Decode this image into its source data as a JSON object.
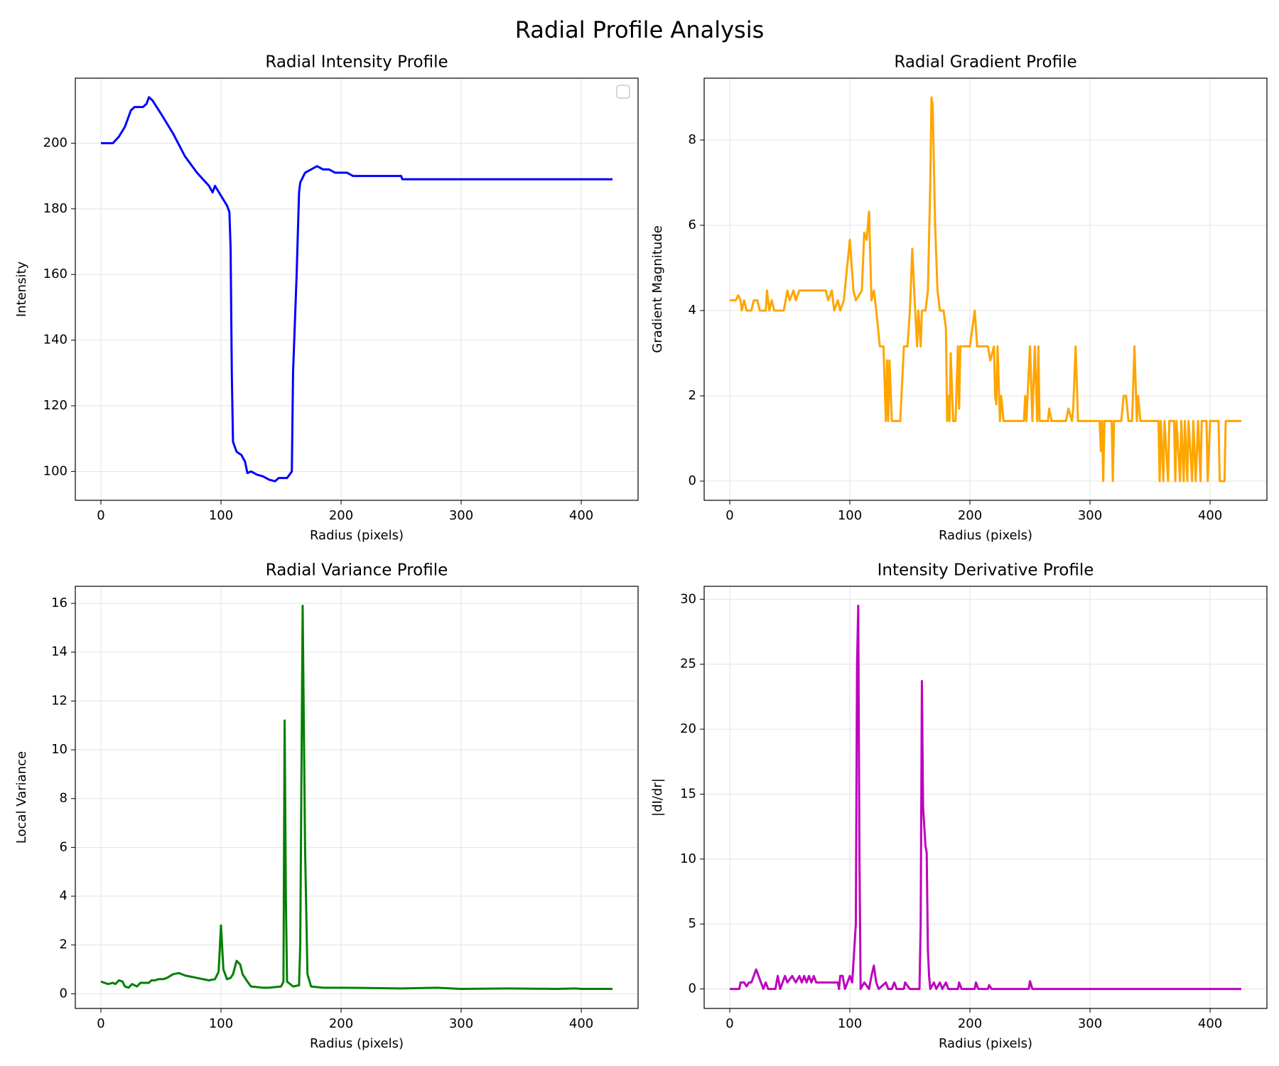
{
  "title": "Radial Profile Analysis",
  "chart_data": [
    {
      "type": "line",
      "title": "Radial Intensity Profile",
      "x_label": "Radius (pixels)",
      "y_label": "Intensity",
      "color": "#0000ff",
      "grid": true,
      "legend": "upper right",
      "xlim": [
        -21.3,
        447.3
      ],
      "xticks": [
        0,
        100,
        200,
        300,
        400
      ],
      "ylim": [
        91.2,
        219.8
      ],
      "yticks": [
        100,
        120,
        140,
        160,
        180,
        200
      ],
      "x": [
        0,
        10,
        15,
        20,
        25,
        28,
        35,
        38,
        40,
        43,
        50,
        60,
        70,
        80,
        90,
        93,
        95,
        100,
        105,
        107,
        108,
        109,
        110,
        113,
        117,
        120,
        122,
        125,
        130,
        135,
        140,
        145,
        148,
        155,
        159,
        160,
        163,
        165,
        166,
        170,
        175,
        180,
        185,
        190,
        195,
        205,
        210,
        250,
        251,
        426
      ],
      "values": [
        200,
        200,
        202,
        205,
        210,
        211,
        211,
        212,
        214,
        213,
        209,
        203,
        196,
        191,
        187,
        185,
        187,
        184,
        181,
        179,
        168,
        130,
        109,
        106,
        105,
        103,
        99.5,
        100,
        99,
        98.5,
        97.5,
        97,
        98,
        98,
        100,
        130,
        160,
        185,
        188,
        191,
        192,
        193,
        192,
        192,
        191,
        191,
        190,
        190,
        189,
        189
      ]
    },
    {
      "type": "line",
      "title": "Radial Gradient Profile",
      "x_label": "Radius (pixels)",
      "y_label": "Gradient Magnitude",
      "color": "#ffa500",
      "grid": true,
      "xlim": [
        -21.3,
        447.3
      ],
      "xticks": [
        0,
        100,
        200,
        300,
        400
      ],
      "ylim": [
        -0.45,
        9.45
      ],
      "yticks": [
        0,
        2,
        4,
        6,
        8
      ],
      "x": [
        0,
        5,
        7,
        9,
        10,
        12,
        14,
        18,
        20,
        23,
        25,
        30,
        31,
        33,
        35,
        37,
        45,
        48,
        50,
        53,
        55,
        58,
        80,
        82,
        85,
        87,
        90,
        92,
        95,
        100,
        103,
        105,
        110,
        112,
        114,
        116,
        118,
        120,
        122,
        125,
        128,
        130,
        131,
        132,
        133,
        135,
        142,
        145,
        148,
        150,
        152,
        154,
        156,
        157,
        159,
        160,
        163,
        165,
        167,
        168,
        169,
        171,
        173,
        175,
        178,
        180,
        181,
        182,
        183,
        184,
        186,
        188,
        190,
        191,
        192,
        200,
        204,
        206,
        215,
        217,
        220,
        221,
        222,
        223,
        225,
        226,
        228,
        245,
        246,
        247,
        250,
        252,
        254,
        256,
        257,
        258,
        265,
        266,
        268,
        280,
        282,
        285,
        286,
        288,
        290,
        308,
        309,
        310,
        311,
        312,
        318,
        319,
        320,
        326,
        328,
        330,
        332,
        335,
        337,
        339,
        340,
        342,
        357,
        358,
        359,
        361,
        362,
        365,
        366,
        370,
        371,
        372,
        375,
        376,
        378,
        379,
        381,
        382,
        385,
        386,
        388,
        390,
        392,
        393,
        397,
        398,
        400,
        407,
        408,
        412,
        413,
        426
      ],
      "values": [
        4.24,
        4.24,
        4.36,
        4.24,
        4.0,
        4.24,
        4.0,
        4.0,
        4.24,
        4.24,
        4.0,
        4.0,
        4.47,
        4.0,
        4.24,
        4.0,
        4.0,
        4.47,
        4.24,
        4.47,
        4.24,
        4.47,
        4.47,
        4.24,
        4.47,
        4.0,
        4.24,
        4.0,
        4.24,
        5.66,
        4.47,
        4.24,
        4.47,
        5.83,
        5.66,
        6.32,
        4.24,
        4.47,
        4.0,
        3.16,
        3.16,
        1.41,
        2.83,
        1.41,
        2.83,
        1.41,
        1.41,
        3.16,
        3.16,
        4.0,
        5.45,
        4.24,
        3.16,
        4.0,
        3.16,
        4.0,
        4.0,
        4.47,
        7.0,
        9.0,
        8.8,
        6.0,
        4.47,
        4.0,
        4.0,
        3.6,
        1.41,
        2.0,
        1.41,
        3.0,
        1.41,
        1.41,
        3.16,
        1.7,
        3.16,
        3.16,
        4.0,
        3.16,
        3.16,
        2.83,
        3.16,
        2.0,
        1.8,
        3.16,
        1.41,
        2.0,
        1.41,
        1.41,
        2.0,
        1.41,
        3.16,
        1.41,
        3.16,
        1.41,
        3.16,
        1.41,
        1.41,
        1.7,
        1.41,
        1.41,
        1.7,
        1.41,
        1.7,
        3.16,
        1.41,
        1.41,
        0.7,
        1.41,
        0,
        1.41,
        1.41,
        0,
        1.41,
        1.41,
        2.0,
        2.0,
        1.41,
        1.41,
        3.16,
        1.41,
        2.0,
        1.41,
        1.41,
        0,
        1.41,
        0,
        1.41,
        0,
        1.41,
        1.41,
        0,
        1.41,
        0,
        1.41,
        0,
        1.41,
        0,
        1.41,
        0,
        1.41,
        0,
        1.41,
        0,
        1.41,
        1.41,
        0,
        1.41,
        1.41,
        0,
        0,
        1.41,
        1.41
      ]
    },
    {
      "type": "line",
      "title": "Radial Variance Profile",
      "x_label": "Radius (pixels)",
      "y_label": "Local Variance",
      "color": "#008000",
      "grid": true,
      "xlim": [
        -21.3,
        447.3
      ],
      "xticks": [
        0,
        100,
        200,
        300,
        400
      ],
      "ylim": [
        -0.6,
        16.7
      ],
      "yticks": [
        0,
        2,
        4,
        6,
        8,
        10,
        12,
        14,
        16
      ],
      "x": [
        0,
        3,
        6,
        10,
        12,
        15,
        18,
        20,
        23,
        26,
        30,
        33,
        40,
        42,
        45,
        48,
        52,
        55,
        60,
        65,
        70,
        80,
        90,
        95,
        98,
        100,
        102,
        105,
        108,
        110,
        113,
        116,
        118,
        122,
        125,
        135,
        140,
        150,
        152,
        153,
        154,
        155,
        160,
        165,
        166,
        168,
        170,
        172,
        175,
        185,
        200,
        250,
        280,
        300,
        340,
        380,
        395,
        400,
        426
      ],
      "values": [
        0.5,
        0.45,
        0.4,
        0.45,
        0.4,
        0.55,
        0.5,
        0.3,
        0.25,
        0.4,
        0.3,
        0.45,
        0.45,
        0.55,
        0.55,
        0.6,
        0.6,
        0.65,
        0.8,
        0.85,
        0.75,
        0.65,
        0.55,
        0.6,
        0.9,
        2.8,
        1.0,
        0.6,
        0.65,
        0.8,
        1.35,
        1.2,
        0.8,
        0.5,
        0.3,
        0.25,
        0.25,
        0.3,
        0.5,
        11.2,
        4.0,
        0.5,
        0.3,
        0.35,
        2.0,
        15.9,
        6.0,
        0.8,
        0.3,
        0.25,
        0.25,
        0.22,
        0.25,
        0.2,
        0.22,
        0.2,
        0.22,
        0.2,
        0.2
      ]
    },
    {
      "type": "line",
      "title": "Intensity Derivative Profile",
      "x_label": "Radius (pixels)",
      "y_label": "|dI/dr|",
      "color": "#bf00bf",
      "grid": true,
      "xlim": [
        -21.3,
        447.3
      ],
      "xticks": [
        0,
        100,
        200,
        300,
        400
      ],
      "ylim": [
        -1.5,
        31.0
      ],
      "yticks": [
        0,
        5,
        10,
        15,
        20,
        25,
        30
      ],
      "x": [
        0,
        8,
        9,
        12,
        14,
        16,
        18,
        20,
        22,
        24,
        26,
        28,
        30,
        32,
        38,
        40,
        42,
        44,
        46,
        48,
        52,
        55,
        58,
        60,
        62,
        64,
        66,
        68,
        70,
        72,
        90,
        91,
        92,
        94,
        96,
        98,
        100,
        102,
        105,
        106,
        107,
        108,
        109,
        112,
        116,
        118,
        120,
        122,
        124,
        130,
        132,
        135,
        137,
        139,
        145,
        146,
        150,
        158,
        159,
        160,
        161,
        162,
        163,
        164,
        165,
        166,
        167,
        170,
        172,
        175,
        177,
        180,
        182,
        190,
        191,
        193,
        204,
        205,
        207,
        215,
        216,
        218,
        249,
        250,
        252,
        426
      ],
      "values": [
        0,
        0,
        0.5,
        0.5,
        0.2,
        0.5,
        0.5,
        1.0,
        1.5,
        1.0,
        0.5,
        0,
        0.5,
        0,
        0,
        1.0,
        0,
        0.5,
        1.0,
        0.5,
        1.0,
        0.5,
        1.0,
        0.5,
        1.0,
        0.5,
        1.0,
        0.5,
        1.0,
        0.5,
        0.5,
        0,
        1.0,
        1.0,
        0,
        0.5,
        1.0,
        0.5,
        5.0,
        25.0,
        29.5,
        10.0,
        0,
        0.5,
        0,
        1.0,
        1.8,
        0.5,
        0,
        0.5,
        0,
        0,
        0.5,
        0,
        0,
        0.5,
        0,
        0,
        5,
        23.7,
        14,
        12.5,
        11,
        10.5,
        3,
        1.0,
        0,
        0.5,
        0,
        0.5,
        0,
        0.5,
        0,
        0,
        0.5,
        0,
        0,
        0.5,
        0,
        0,
        0.3,
        0,
        0,
        0.6,
        0,
        0
      ]
    }
  ]
}
